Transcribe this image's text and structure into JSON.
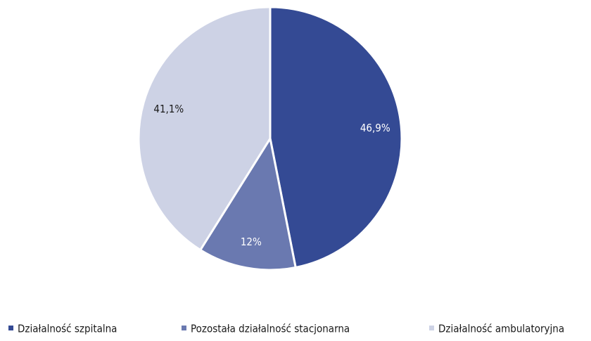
{
  "chart_data": {
    "type": "pie",
    "categories": [
      "Działalność szpitalna",
      "Pozostała działalność stacjonarna",
      "Działalność ambulatoryjna"
    ],
    "values": [
      46.9,
      12,
      41.1
    ],
    "value_labels": [
      "46,9%",
      "12%",
      "41,1%"
    ],
    "colors": [
      "#344a94",
      "#6a79b0",
      "#cdd2e5"
    ],
    "label_colors": [
      "#ffffff",
      "#ffffff",
      "#1a1a1a"
    ]
  }
}
